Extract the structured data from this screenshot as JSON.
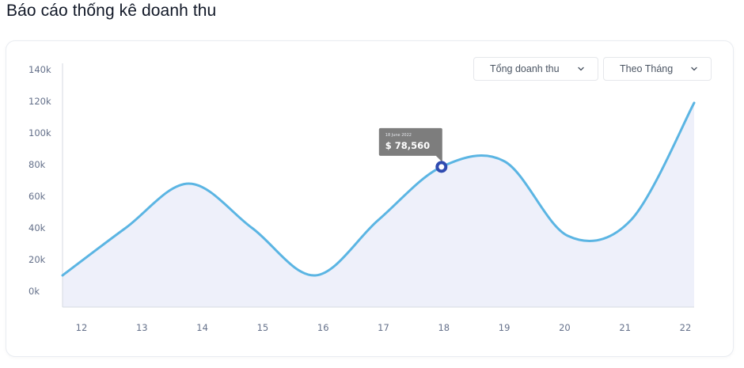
{
  "page": {
    "title": "Báo cáo thống kê doanh thu"
  },
  "filters": {
    "metric": {
      "selected": "Tổng doanh thu",
      "icon": "chevron-down-icon"
    },
    "period": {
      "selected": "Theo Tháng",
      "icon": "chevron-down-icon"
    }
  },
  "colors": {
    "line": "#5bb5e3",
    "area": "#eef0fa",
    "marker": "#2f4bb0",
    "tooltip": "#7d7d7d",
    "axis": "#d6dae2"
  },
  "chart_data": {
    "type": "area",
    "x": [
      "12",
      "13",
      "14",
      "15",
      "16",
      "17",
      "18",
      "19",
      "20",
      "21",
      "22"
    ],
    "series": [
      {
        "values": [
          10000,
          40000,
          68000,
          40000,
          10000,
          45000,
          78560,
          82000,
          35000,
          45000,
          119000
        ]
      }
    ],
    "ylim": [
      0,
      140000
    ],
    "ytick_labels": [
      "0k",
      "20k",
      "40k",
      "60k",
      "80k",
      "100k",
      "120k",
      "140k"
    ],
    "yticks": [
      0,
      20000,
      40000,
      60000,
      80000,
      100000,
      120000,
      140000
    ],
    "grid": false,
    "tooltip": {
      "x": "18",
      "date": "18 June 2022",
      "value_label": "$ 78,560",
      "value": 78560
    }
  }
}
